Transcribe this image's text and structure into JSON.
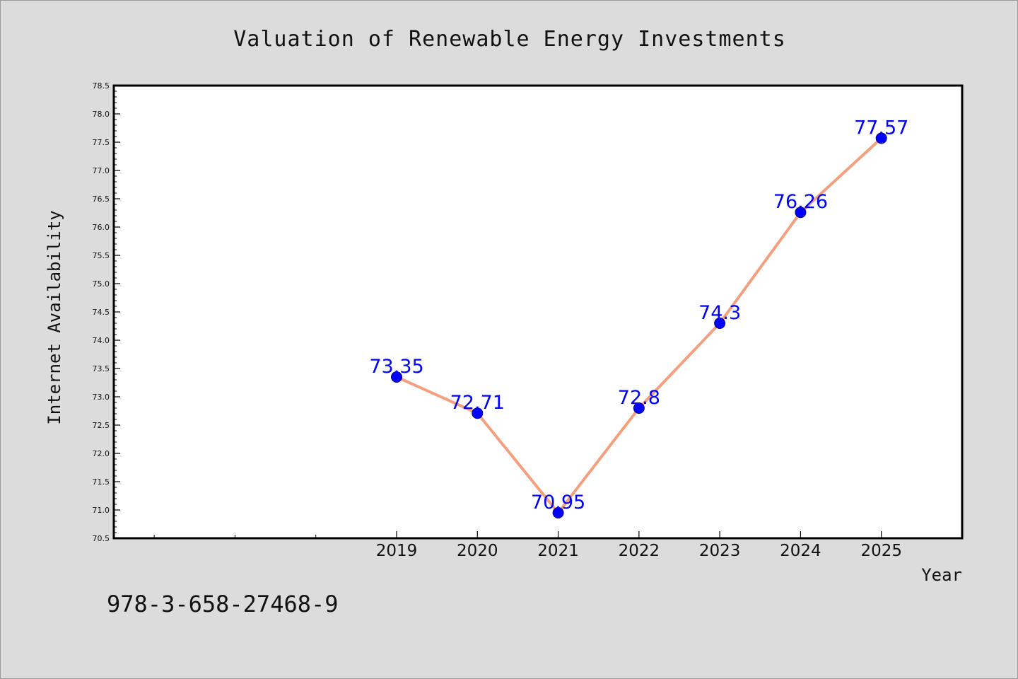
{
  "chart_data": {
    "type": "line",
    "title": "Valuation of Renewable Energy Investments",
    "xlabel": "Year",
    "ylabel": "Internet Availability",
    "x_domain": [
      2015.5,
      2026.0
    ],
    "x_tick_values": [
      2019,
      2020,
      2021,
      2022,
      2023,
      2024,
      2025
    ],
    "x_minor_ticks": [
      2016,
      2017,
      2018
    ],
    "ylim": [
      70.5,
      78.5
    ],
    "y_ticks": [
      70.5,
      71.0,
      71.5,
      72.0,
      72.5,
      73.0,
      73.5,
      74.0,
      74.5,
      75.0,
      75.5,
      76.0,
      76.5,
      77.0,
      77.5,
      78.0,
      78.5
    ],
    "y_tick_labels": [
      "70.5",
      "71.0",
      "71.5",
      "72.0",
      "72.5",
      "73.0",
      "73.5",
      "74.0",
      "74.5",
      "75.0",
      "75.5",
      "76.0",
      "76.5",
      "77.0",
      "77.5",
      "78.0",
      "78.5"
    ],
    "grid": false,
    "series": [
      {
        "x": [
          2019,
          2020,
          2021,
          2022,
          2023,
          2024,
          2025
        ],
        "values": [
          73.35,
          72.71,
          70.95,
          72.8,
          74.3,
          76.26,
          77.57
        ],
        "labels": [
          "73.35",
          "72.71",
          "70.95",
          "72.8",
          "74.3",
          "76.26",
          "77.57"
        ],
        "line_color": "#f4a07f",
        "marker_color": "#0000ff"
      }
    ]
  },
  "annotation": {
    "isbn": "978-3-658-27468-9"
  },
  "colors": {
    "background": "#dcdcdc",
    "plot_area": "#ffffff",
    "frame": "#000000",
    "data_label": "#0000ff"
  }
}
